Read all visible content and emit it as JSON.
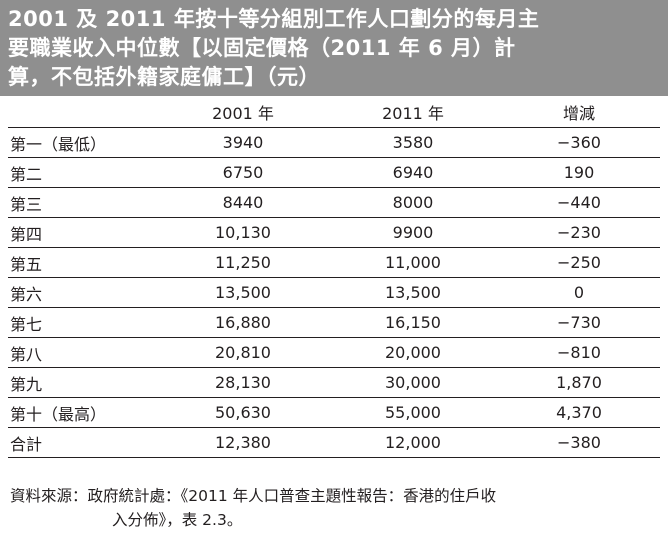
{
  "title": {
    "line1": "2001 及 2011 年按十等分組別工作人口劃分的每月主",
    "line2": "要職業收入中位數【以固定價格（2011 年 6 月）計",
    "line3": "算，不包括外籍家庭傭工】（元）"
  },
  "table": {
    "headers": {
      "col_2001": "2001 年",
      "col_2011": "2011 年",
      "col_change": "增減"
    },
    "rows": [
      {
        "label": "第一（最低）",
        "v2001": "3940",
        "v2011": "3580",
        "change": "−360"
      },
      {
        "label": "第二",
        "v2001": "6750",
        "v2011": "6940",
        "change": "190"
      },
      {
        "label": "第三",
        "v2001": "8440",
        "v2011": "8000",
        "change": "−440"
      },
      {
        "label": "第四",
        "v2001": "10,130",
        "v2011": "9900",
        "change": "−230"
      },
      {
        "label": "第五",
        "v2001": "11,250",
        "v2011": "11,000",
        "change": "−250"
      },
      {
        "label": "第六",
        "v2001": "13,500",
        "v2011": "13,500",
        "change": "0"
      },
      {
        "label": "第七",
        "v2001": "16,880",
        "v2011": "16,150",
        "change": "−730"
      },
      {
        "label": "第八",
        "v2001": "20,810",
        "v2011": "20,000",
        "change": "−810"
      },
      {
        "label": "第九",
        "v2001": "28,130",
        "v2011": "30,000",
        "change": "1,870"
      },
      {
        "label": "第十（最高）",
        "v2001": "50,630",
        "v2011": "55,000",
        "change": "4,370"
      },
      {
        "label": "合計",
        "v2001": "12,380",
        "v2011": "12,000",
        "change": "−380"
      }
    ]
  },
  "source": {
    "line1": "資料來源：政府統計處：《2011 年人口普查主題性報告：香港的住戶收",
    "line2": "入分佈》，表 2.3。"
  },
  "colors": {
    "title_background": "#8f8f8f",
    "title_text": "#ffffff",
    "body_text": "#231f20"
  }
}
